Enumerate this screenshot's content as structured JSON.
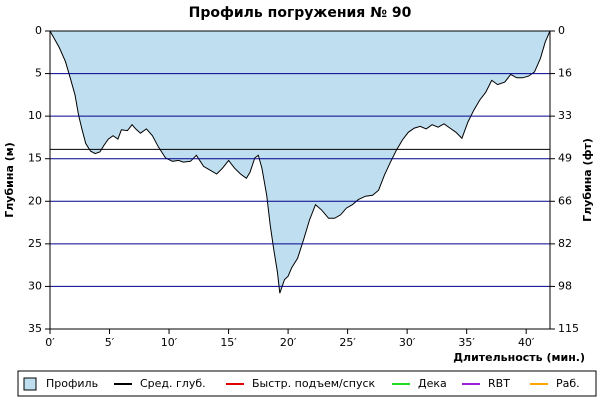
{
  "chart_data": {
    "type": "area",
    "title": "Профиль погружения № 90",
    "x_label": "Длительность (мин.)",
    "y_label": "Глубина (м)",
    "y2_label": "Глубина (фт)",
    "xlim": [
      0,
      42
    ],
    "ylim": [
      0,
      35
    ],
    "y2lim": [
      0,
      114.8
    ],
    "y_inverted": true,
    "grid": true,
    "grid_color": "#00008b",
    "xticks": [
      {
        "value": 0,
        "label": "0′"
      },
      {
        "value": 5,
        "label": "5′"
      },
      {
        "value": 10,
        "label": "10′"
      },
      {
        "value": 15,
        "label": "15′"
      },
      {
        "value": 20,
        "label": "20′"
      },
      {
        "value": 25,
        "label": "25′"
      },
      {
        "value": 30,
        "label": "30′"
      },
      {
        "value": 35,
        "label": "35′"
      },
      {
        "value": 40,
        "label": "40′"
      }
    ],
    "yticks": [
      0,
      5,
      10,
      15,
      20,
      25,
      30,
      35
    ],
    "y2ticks": [
      0,
      {
        "value": 16.4,
        "label": "16"
      },
      {
        "value": 32.8,
        "label": "33"
      },
      {
        "value": 49.2,
        "label": "49"
      },
      {
        "value": 65.6,
        "label": "66"
      },
      82,
      {
        "value": 98.4,
        "label": "98"
      },
      {
        "value": 114.8,
        "label": "115"
      }
    ],
    "series": [
      {
        "name": "Профиль",
        "color": "#bfdff0",
        "x": [
          0,
          0.4,
          0.8,
          1.3,
          1.7,
          2.1,
          2.4,
          2.7,
          3.0,
          3.4,
          3.8,
          4.2,
          4.5,
          4.9,
          5.3,
          5.7,
          6.0,
          6.5,
          6.9,
          7.2,
          7.6,
          8.1,
          8.6,
          9.1,
          9.7,
          10.3,
          10.8,
          11.2,
          11.8,
          12.3,
          12.9,
          13.4,
          14.0,
          14.5,
          15.0,
          15.5,
          16.0,
          16.5,
          16.8,
          17.2,
          17.5,
          17.8,
          18.2,
          18.5,
          18.8,
          19.1,
          19.3,
          19.7,
          20.0,
          20.3,
          20.8,
          21.3,
          21.8,
          22.3,
          22.8,
          23.4,
          23.9,
          24.4,
          24.9,
          25.4,
          25.9,
          26.5,
          27.1,
          27.6,
          28.1,
          28.6,
          29.1,
          29.6,
          30.1,
          30.6,
          31.1,
          31.6,
          32.1,
          32.6,
          33.1,
          33.6,
          34.1,
          34.6,
          35.1,
          35.6,
          36.1,
          36.6,
          37.1,
          37.6,
          38.2,
          38.7,
          39.2,
          39.7,
          40.2,
          40.7,
          41.2,
          41.6,
          42.0
        ],
        "values": [
          0,
          1,
          2,
          3.6,
          5.5,
          7.5,
          9.9,
          11.6,
          13.2,
          14.1,
          14.4,
          14.2,
          13.5,
          12.7,
          12.3,
          12.7,
          11.6,
          11.7,
          11.0,
          11.5,
          12.0,
          11.5,
          12.3,
          13.6,
          14.9,
          15.3,
          15.2,
          15.4,
          15.3,
          14.6,
          15.9,
          16.3,
          16.8,
          16.1,
          15.2,
          16.1,
          16.8,
          17.3,
          16.6,
          14.9,
          14.6,
          16.1,
          19.3,
          22.8,
          25.7,
          28.3,
          30.8,
          29.2,
          28.8,
          27.8,
          26.7,
          24.5,
          22.2,
          20.4,
          21.0,
          22.0,
          22.0,
          21.6,
          20.8,
          20.4,
          19.8,
          19.4,
          19.3,
          18.7,
          16.9,
          15.4,
          14.0,
          12.8,
          11.9,
          11.4,
          11.2,
          11.5,
          11.0,
          11.3,
          10.9,
          11.4,
          11.9,
          12.6,
          10.7,
          9.3,
          8.1,
          7.2,
          5.8,
          6.3,
          6.0,
          5.1,
          5.5,
          5.5,
          5.3,
          4.8,
          3.2,
          1.3,
          0
        ]
      }
    ],
    "avg_depth": {
      "name": "Сред. глуб.",
      "color": "#000000",
      "value": 13.9
    },
    "legend": [
      {
        "name": "Быстр. подъем/спуск",
        "color": "#e00000"
      },
      {
        "name": "Дека",
        "color": "#22dd22"
      },
      {
        "name": "RBT",
        "color": "#9922dd"
      },
      {
        "name": "Раб.",
        "color": "#ffa500"
      }
    ]
  }
}
